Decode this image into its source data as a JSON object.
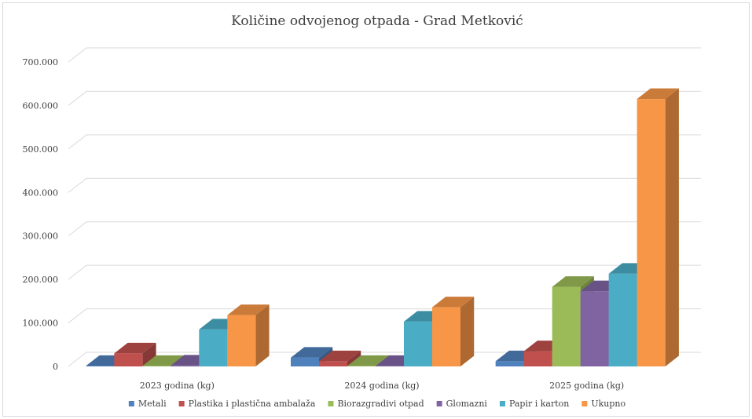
{
  "chart_data": {
    "type": "bar",
    "title": "Količine odvojenog otpada - Grad Metković",
    "categories": [
      "2023 godina (kg)",
      "2024 godina (kg)",
      "2025 godina (kg)"
    ],
    "y_ticks": [
      "0",
      "100.000",
      "200.000",
      "300.000",
      "400.000",
      "500.000",
      "600.000",
      "700.000"
    ],
    "ylim": [
      0,
      700000
    ],
    "grid": true,
    "legend_position": "bottom",
    "three_d": true,
    "series": [
      {
        "name": "Metali",
        "color": "#4f81bd",
        "values": [
          1000,
          20000,
          12000
        ]
      },
      {
        "name": "Plastika i plastična ambalaža",
        "color": "#c0504d",
        "values": [
          30000,
          12000,
          35000
        ]
      },
      {
        "name": "Biorazgradivi otpad",
        "color": "#9bbb59",
        "values": [
          1000,
          1000,
          183000
        ]
      },
      {
        "name": "Glomazni",
        "color": "#8064a2",
        "values": [
          2000,
          1000,
          173000
        ]
      },
      {
        "name": "Papir i karton",
        "color": "#4bacc6",
        "values": [
          85000,
          103000,
          213000
        ]
      },
      {
        "name": "Ukupno",
        "color": "#f79646",
        "values": [
          118000,
          136000,
          615000
        ]
      }
    ]
  }
}
